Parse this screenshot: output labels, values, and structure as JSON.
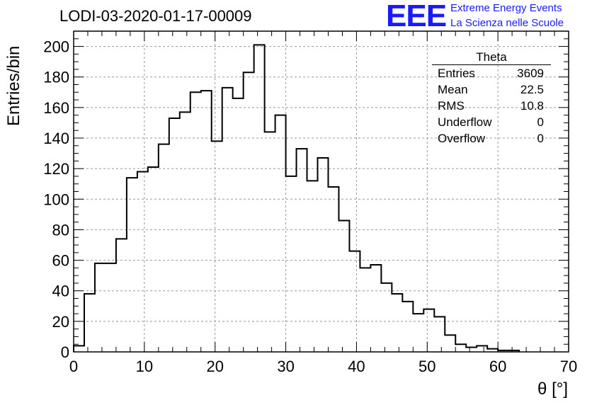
{
  "title": "LODI-03-2020-01-17-00009",
  "logo": {
    "mark": "EEE",
    "line1": "Extreme Energy Events",
    "line2": "La Scienza nelle Scuole"
  },
  "stats": {
    "title": "Theta",
    "rows": [
      {
        "label": "Entries",
        "value": "3609"
      },
      {
        "label": "Mean",
        "value": "22.5"
      },
      {
        "label": "RMS",
        "value": "10.8"
      },
      {
        "label": "Underflow",
        "value": "0"
      },
      {
        "label": "Overflow",
        "value": "0"
      }
    ]
  },
  "colors": {
    "line": "#000000",
    "grid": "#999999",
    "logo": "#1a1aff"
  },
  "chart_data": {
    "type": "histogram",
    "xlabel": "θ [°]",
    "ylabel": "Entries/bin",
    "xlim": [
      0,
      70
    ],
    "ylim": [
      0,
      210
    ],
    "grid": true,
    "bin_width": 1.5,
    "bin_start": 0,
    "values": [
      4,
      38,
      58,
      58,
      74,
      114,
      118,
      121,
      136,
      153,
      157,
      170,
      171,
      138,
      173,
      166,
      183,
      201,
      144,
      155,
      115,
      133,
      112,
      127,
      108,
      86,
      66,
      55,
      57,
      45,
      38,
      33,
      25,
      28,
      23,
      11,
      5,
      3,
      4,
      2,
      1,
      1,
      0,
      0,
      0,
      0,
      0
    ],
    "x_ticks": [
      0,
      10,
      20,
      30,
      40,
      50,
      60,
      70
    ],
    "y_ticks": [
      0,
      20,
      40,
      60,
      80,
      100,
      120,
      140,
      160,
      180,
      200
    ]
  }
}
